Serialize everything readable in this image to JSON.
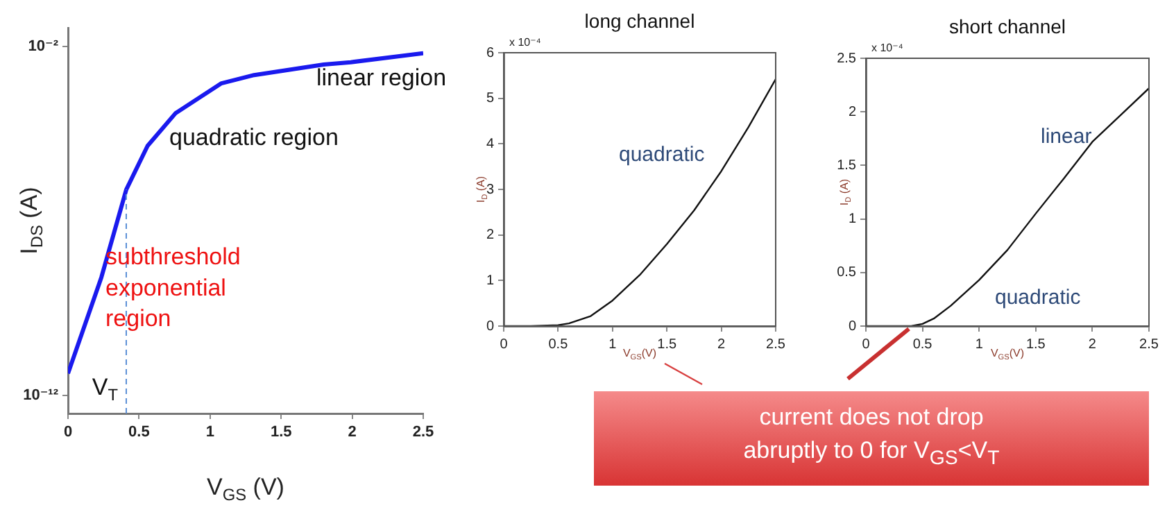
{
  "chart_data": [
    {
      "type": "line",
      "log": "y",
      "xlabel": "V$_{GS}$ (V)",
      "ylabel": "I$_{DS}$ (A)",
      "xlim": [
        0,
        2.5
      ],
      "xticks": [
        0,
        0.5,
        1,
        1.5,
        2,
        2.5
      ],
      "ylim": [
        3e-13,
        0.034
      ],
      "yticks": [
        {
          "value": 1e-12,
          "label": "10⁻¹²"
        },
        {
          "value": 0.01,
          "label": "10⁻²"
        }
      ],
      "series": [
        {
          "color": "#1a1aee",
          "x": [
            0,
            0.235,
            0.41,
            0.56,
            0.756,
            1.08,
            1.31,
            1.8,
            1.99,
            2.5
          ],
          "values": [
            4.2e-12,
            2.4e-09,
            7.8e-07,
            1.4e-05,
            0.00012,
            0.00087,
            0.0015,
            0.003,
            0.0035,
            0.0063
          ]
        }
      ],
      "ref_lines": [
        {
          "axis": "x",
          "value": 0.41,
          "label": "V$_{T}$",
          "color": "#5b8fd6",
          "line_style": "dashed"
        }
      ],
      "annotations": [
        "linear region",
        "quadratic region",
        "subthreshold\nexponential\nregion"
      ]
    },
    {
      "type": "line",
      "title": "long channel",
      "xlabel": "V$_{GS}$(V)",
      "ylabel": "I$_{D}$ (A)",
      "xlim": [
        0,
        2.5
      ],
      "xticks": [
        0,
        0.5,
        1,
        1.5,
        2,
        2.5
      ],
      "ylim": [
        0,
        6
      ],
      "yticks": [
        0,
        1,
        2,
        3,
        4,
        5,
        6
      ],
      "series": [
        {
          "color": "#111111",
          "x": [
            0,
            0.25,
            0.5,
            0.6,
            0.8,
            1,
            1.25,
            1.5,
            1.75,
            2,
            2.25,
            2.5
          ],
          "values": [
            0,
            0,
            0.02,
            0.06,
            0.22,
            0.56,
            1.12,
            1.8,
            2.54,
            3.4,
            4.37,
            5.42
          ]
        }
      ],
      "annotations": [
        "x 10⁻⁴",
        "quadratic"
      ]
    },
    {
      "type": "line",
      "title": "short channel",
      "xlabel": "V$_{GS}$(V)",
      "ylabel": "I$_{D}$ (A)",
      "xlim": [
        0,
        2.5
      ],
      "xticks": [
        0,
        0.5,
        1,
        1.5,
        2,
        2.5
      ],
      "ylim": [
        0,
        2.5
      ],
      "yticks": [
        0,
        0.5,
        1,
        1.5,
        2,
        2.5
      ],
      "series": [
        {
          "color": "#111111",
          "x": [
            0,
            0.4,
            0.5,
            0.6,
            0.75,
            1,
            1.25,
            1.5,
            1.75,
            2,
            2.25,
            2.5
          ],
          "values": [
            0,
            0,
            0.02,
            0.07,
            0.19,
            0.43,
            0.71,
            1.05,
            1.38,
            1.72,
            1.97,
            2.22
          ]
        }
      ],
      "annotations": [
        "x 10⁻⁴",
        "linear",
        "quadratic"
      ]
    },
    {
      "type": "other",
      "annotations": [
        "current does not drop",
        "abruptly to 0 for V$_{GS}$<V$_{T}$"
      ]
    }
  ]
}
